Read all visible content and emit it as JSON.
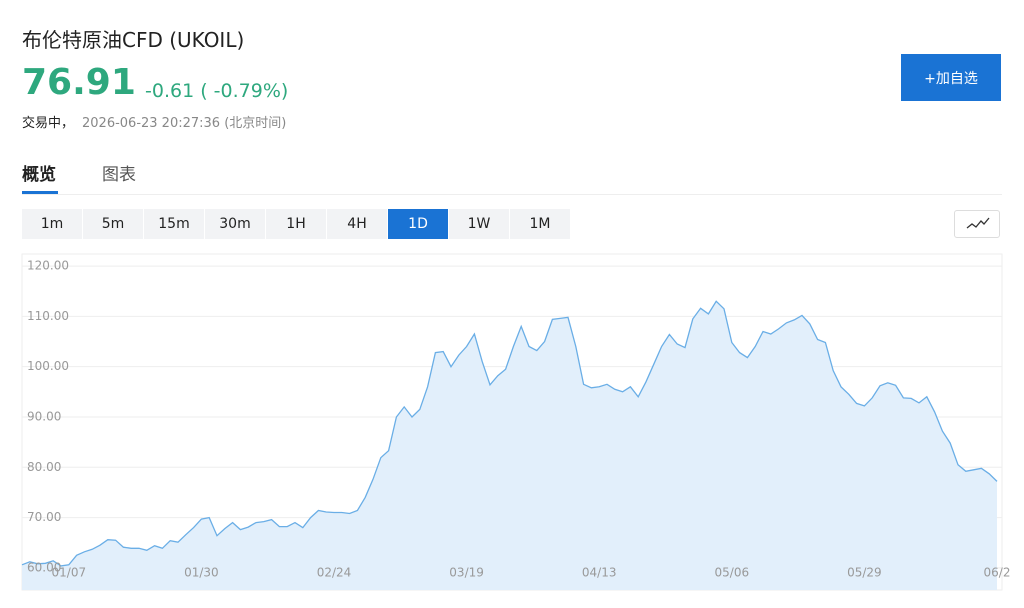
{
  "header": {
    "title": "布伦特原油CFD (UKOIL)",
    "price": "76.91",
    "change": "-0.61 ( -0.79%)",
    "status": "交易中，",
    "time": "2026-06-23 20:27:36 (北京时间)"
  },
  "watch_button": "+加自选",
  "tabs": [
    "概览",
    "图表"
  ],
  "intervals": [
    "1m",
    "5m",
    "15m",
    "30m",
    "1H",
    "4H",
    "1D",
    "1W",
    "1M"
  ],
  "chart_data": {
    "type": "area",
    "color": "#6aaee6",
    "fill": "#e2effb",
    "grid": true,
    "ylim": [
      55.6,
      122.2
    ],
    "yticks": [
      {
        "value": 60,
        "label": "60.00"
      },
      {
        "value": 70,
        "label": "70.00"
      },
      {
        "value": 80,
        "label": "80.00"
      },
      {
        "value": 90,
        "label": "90.00"
      },
      {
        "value": 100,
        "label": "100.00"
      },
      {
        "value": 110,
        "label": "110.00"
      },
      {
        "value": 120,
        "label": "120.00"
      }
    ],
    "categories": [
      null,
      null,
      null,
      null,
      null,
      null,
      "01/07",
      null,
      null,
      null,
      null,
      null,
      null,
      null,
      null,
      null,
      null,
      null,
      null,
      null,
      null,
      null,
      null,
      "01/30",
      null,
      null,
      null,
      null,
      null,
      null,
      null,
      null,
      null,
      null,
      null,
      null,
      null,
      null,
      null,
      null,
      "02/24",
      null,
      null,
      null,
      null,
      null,
      null,
      null,
      null,
      null,
      null,
      null,
      null,
      null,
      null,
      null,
      null,
      "03/19",
      null,
      null,
      null,
      null,
      null,
      null,
      null,
      null,
      null,
      null,
      null,
      null,
      null,
      null,
      null,
      null,
      "04/13",
      null,
      null,
      null,
      null,
      null,
      null,
      null,
      null,
      null,
      null,
      null,
      null,
      null,
      null,
      null,
      null,
      "05/06",
      null,
      null,
      null,
      null,
      null,
      null,
      null,
      null,
      null,
      null,
      null,
      null,
      null,
      null,
      null,
      null,
      "05/29",
      null,
      null,
      null,
      null,
      null,
      null,
      null,
      null,
      null,
      null,
      null,
      null,
      null,
      null,
      null,
      null,
      "06/2"
    ],
    "values": [
      60.6,
      61.2,
      60.8,
      60.9,
      61.4,
      60.4,
      60.6,
      62.5,
      63.2,
      63.7,
      64.5,
      65.6,
      65.5,
      64.1,
      63.9,
      63.9,
      63.5,
      64.4,
      63.9,
      65.4,
      65.1,
      66.6,
      68,
      69.7,
      70,
      66.4,
      67.8,
      69,
      67.6,
      68.1,
      69,
      69.2,
      69.6,
      68.2,
      68.2,
      69,
      68,
      70,
      71.4,
      71.1,
      71,
      71,
      70.8,
      71.4,
      74,
      77.6,
      81.9,
      83.3,
      90,
      92,
      90,
      91.5,
      96,
      102.8,
      103,
      100,
      102.3,
      104,
      106.5,
      101,
      96.4,
      98.2,
      99.5,
      104,
      108,
      104,
      103.2,
      105,
      109.4,
      109.6,
      109.8,
      104,
      96.5,
      95.8,
      96,
      96.5,
      95.5,
      95,
      96,
      94,
      97,
      100.5,
      104,
      106.4,
      104.5,
      103.8,
      109.5,
      111.6,
      110.5,
      113,
      111.5,
      104.8,
      102.8,
      101.8,
      104,
      107,
      106.5,
      107.5,
      108.7,
      109.3,
      110.2,
      108.5,
      105.4,
      104.8,
      99.2,
      96,
      94.5,
      92.7,
      92.2,
      93.8,
      96.2,
      96.8,
      96.3,
      93.8,
      93.7,
      92.8,
      94,
      91,
      87.2,
      84.8,
      80.5,
      79.2,
      79.5,
      79.8,
      78.7,
      77.2
    ]
  }
}
